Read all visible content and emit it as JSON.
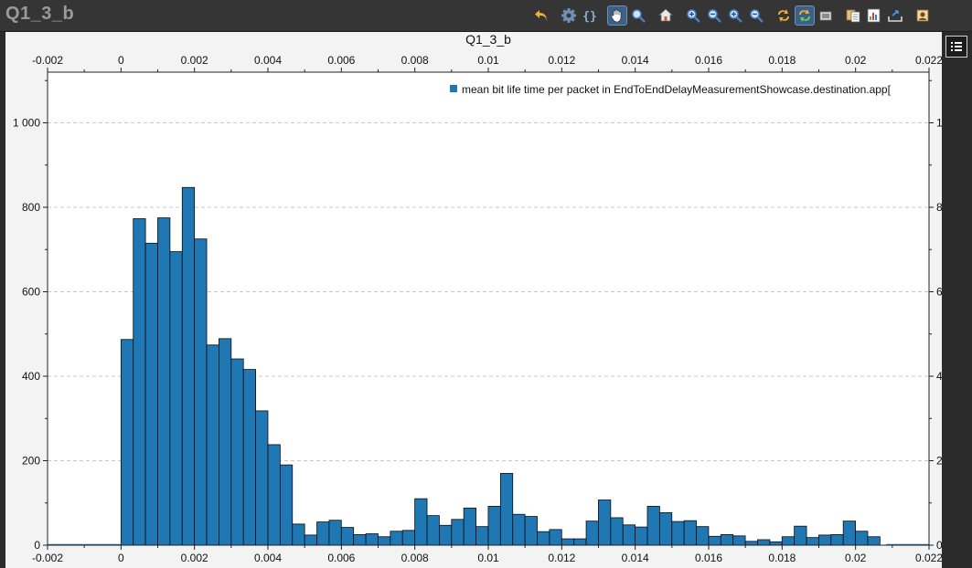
{
  "window": {
    "title": "Q1_3_b"
  },
  "toolbar": {
    "icons": [
      "undo-icon",
      "settings-icon",
      "braces-icon",
      "pan-hand-icon",
      "zoom-icon",
      "home-icon",
      "zoom-in-x-icon",
      "zoom-out-x-icon",
      "zoom-in-y-icon",
      "zoom-out-y-icon",
      "refresh-icon",
      "auto-refresh-icon",
      "screenshot-icon",
      "copy-icon",
      "export-data-icon",
      "export-image-icon",
      "show-data-icon"
    ],
    "active": [
      "pan-hand-icon",
      "auto-refresh-icon"
    ]
  },
  "sidebar": {
    "toggle_icon": "legend-list-icon"
  },
  "chart_data": {
    "type": "bar",
    "title": "Q1_3_b",
    "legend": {
      "placement": "top-right",
      "entries": [
        {
          "label": "mean bit life time per packet in EndToEndDelayMeasurementShowcase.destination.app[",
          "color": "#1f77b4"
        }
      ]
    },
    "x_range": [
      -0.002,
      0.022
    ],
    "y_range": [
      0,
      1120
    ],
    "x_ticks": [
      -0.002,
      0,
      0.002,
      0.004,
      0.006,
      0.008,
      0.01,
      0.012,
      0.014,
      0.016,
      0.018,
      0.02,
      0.022
    ],
    "x_tick_labels": [
      "-0.002",
      "0",
      "0.002",
      "0.004",
      "0.006",
      "0.008",
      "0.01",
      "0.012",
      "0.014",
      "0.016",
      "0.018",
      "0.02",
      "0.022"
    ],
    "y_ticks": [
      0,
      200,
      400,
      600,
      800,
      1000
    ],
    "y_tick_labels": [
      "0",
      "200",
      "400",
      "600",
      "800",
      "1 000"
    ],
    "grid": "horizontal-dashed",
    "bin_start": 0,
    "bin_width": 0.0003333,
    "values": [
      487,
      773,
      715,
      775,
      695,
      847,
      725,
      474,
      489,
      441,
      416,
      318,
      238,
      190,
      50,
      24,
      55,
      59,
      42,
      25,
      27,
      20,
      33,
      35,
      110,
      70,
      47,
      61,
      88,
      44,
      92,
      170,
      73,
      68,
      32,
      37,
      15,
      15,
      57,
      107,
      65,
      48,
      43,
      92,
      77,
      56,
      58,
      44,
      21,
      25,
      22,
      9,
      13,
      8,
      20,
      45,
      18,
      24,
      25,
      57,
      33,
      20,
      0,
      0
    ]
  }
}
